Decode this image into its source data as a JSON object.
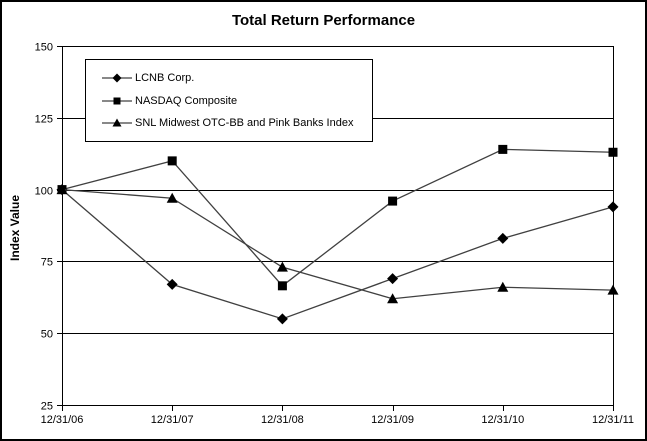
{
  "chart": {
    "title": "Total Return Performance",
    "ylabel": "Index Value"
  },
  "chart_data": {
    "type": "line",
    "title": "Total Return Performance",
    "xlabel": "",
    "ylabel": "Index Value",
    "categories": [
      "12/31/06",
      "12/31/07",
      "12/31/08",
      "12/31/09",
      "12/31/10",
      "12/31/11"
    ],
    "series": [
      {
        "name": "LCNB Corp.",
        "marker": "diamond",
        "values": [
          100,
          67,
          55,
          69,
          83,
          94
        ]
      },
      {
        "name": "NASDAQ Composite",
        "marker": "square",
        "values": [
          100,
          110,
          66.5,
          96,
          114,
          113
        ]
      },
      {
        "name": "SNL Midwest OTC-BB and Pink Banks Index",
        "marker": "triangle",
        "values": [
          100,
          97,
          73,
          62,
          66,
          65
        ]
      }
    ],
    "ylim": [
      25,
      150
    ],
    "yticks": [
      150,
      125,
      100,
      75,
      50,
      25
    ],
    "grid": true,
    "legend_position": "top-left-inside",
    "colors": {
      "line": "#404040",
      "marker": "#000000",
      "axis": "#000000",
      "background": "#ffffff"
    }
  }
}
